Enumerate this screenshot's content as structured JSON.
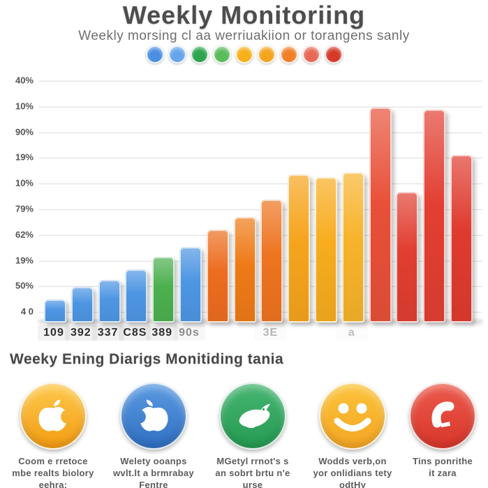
{
  "header": {
    "title": "Weekly Monitoriing",
    "subtitle": "Weekly morsing cl aa werriuakiion or torangens sanly",
    "dot_colors": [
      "#4b8fe2",
      "#66a5ec",
      "#2ea44f",
      "#5abc5a",
      "#f6b019",
      "#f5a41e",
      "#f07f28",
      "#e86a55",
      "#d43b2a"
    ]
  },
  "chart_data": {
    "type": "bar",
    "title": "Weekly Monitoriing",
    "xlabel": "",
    "ylabel": "",
    "grid": true,
    "legend": false,
    "ylim": [
      0,
      100
    ],
    "y_tick_labels": [
      "40%",
      "10%",
      "90%",
      "19%",
      "10%",
      "79%",
      "62%",
      "19%",
      "50%",
      "4 0"
    ],
    "x_ticks": [
      {
        "label": "109",
        "opacity": 1
      },
      {
        "label": "392",
        "opacity": 1
      },
      {
        "label": "337",
        "opacity": 1
      },
      {
        "label": "C8S",
        "opacity": 1
      },
      {
        "label": "389",
        "opacity": 1
      },
      {
        "label": "90s",
        "opacity": 0.55
      },
      {
        "label": "",
        "opacity": 0
      },
      {
        "label": "",
        "opacity": 0
      },
      {
        "label": "3E",
        "opacity": 0.35
      },
      {
        "label": "",
        "opacity": 0
      },
      {
        "label": "",
        "opacity": 0
      },
      {
        "label": "a",
        "opacity": 0.3
      },
      {
        "label": "",
        "opacity": 0
      },
      {
        "label": "",
        "opacity": 0
      },
      {
        "label": "",
        "opacity": 0
      },
      {
        "label": "",
        "opacity": 0
      }
    ],
    "values_pct": [
      8,
      13,
      16,
      20,
      25,
      29,
      36,
      41,
      48,
      58,
      57,
      59,
      85,
      51,
      84,
      66
    ],
    "bar_colors": [
      "#4e96e3",
      "#4e96e3",
      "#4e96e3",
      "#4e96e3",
      "#4cb04f",
      "#4e96e3",
      "#ed6d1f",
      "#ee7a17",
      "#ee7420",
      "#f6a41c",
      "#f8ac1e",
      "#f7b32b",
      "#e85038",
      "#e13e31",
      "#e23f32",
      "#df3b2f"
    ]
  },
  "footer": {
    "heading": "Weeky Ening Diarigs Monitiding tania",
    "items": [
      {
        "icon": "apple-icon",
        "color": "#f39c12",
        "color_light": "#fdc94e",
        "lines": [
          "Coom e rretoce",
          "mbe realts biolory",
          "eehra:"
        ]
      },
      {
        "icon": "apple-icon",
        "color": "#2f6fc2",
        "color_light": "#5b9ae0",
        "lines": [
          "Welety ooanps",
          "wvlt.lt a brmrabay",
          "Fentre"
        ]
      },
      {
        "icon": "bird-icon",
        "color": "#259a52",
        "color_light": "#46b571",
        "lines": [
          "MGetyl rrnot's s",
          "an sobrt brtu n'e",
          "urse"
        ]
      },
      {
        "icon": "smiley-icon",
        "color": "#f5a623",
        "color_light": "#fbc33b",
        "lines": [
          "Wodds verb,on",
          "yor onlidians tety",
          "odtHy"
        ]
      },
      {
        "icon": "phone-icon",
        "color": "#d8362a",
        "color_light": "#ea5a4c",
        "lines": [
          "Tins ponrithe",
          "it zara"
        ]
      }
    ]
  }
}
